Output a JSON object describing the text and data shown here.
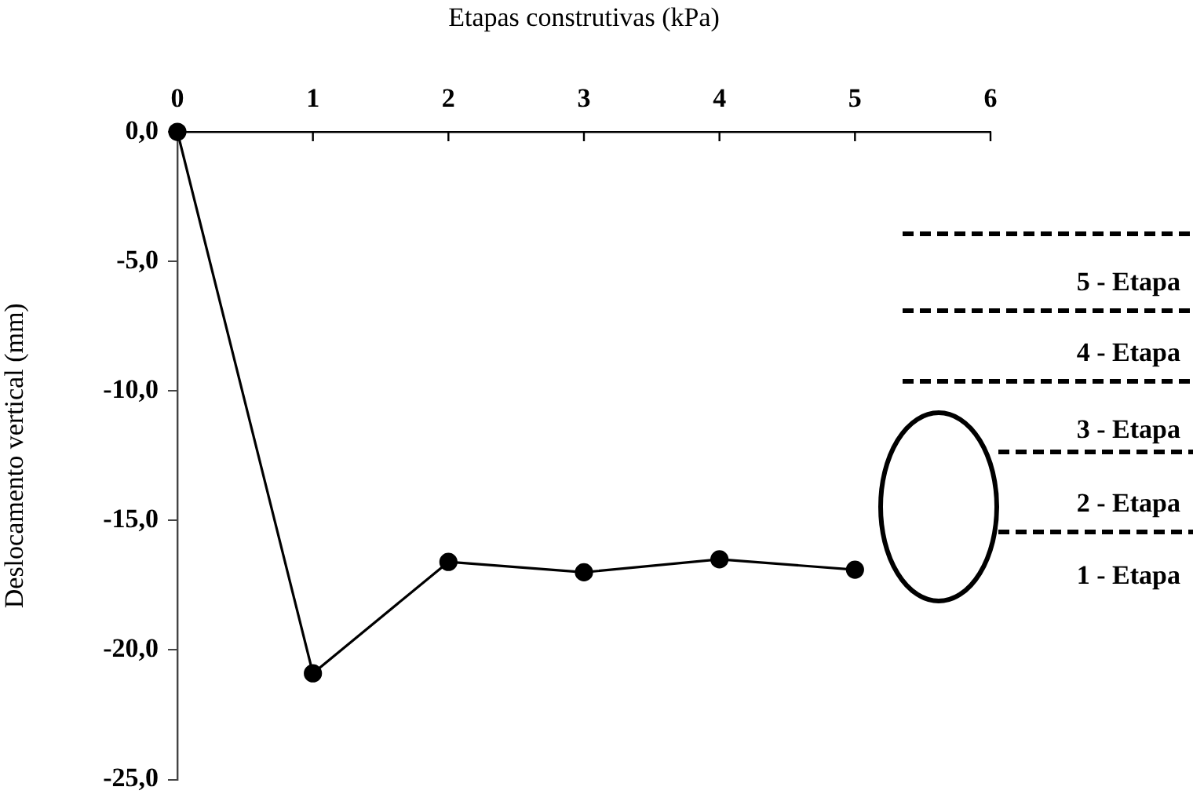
{
  "chart_data": {
    "type": "line",
    "xlabel": "Etapas construtivas (kPa)",
    "ylabel": "Deslocamento vertical (mm)",
    "x": [
      0,
      1,
      2,
      3,
      4,
      5
    ],
    "series": [
      {
        "color": "#000000",
        "values": [
          0,
          -20.9,
          -16.6,
          -17.0,
          -16.5,
          -16.9
        ]
      }
    ],
    "xlim": [
      0,
      6
    ],
    "xticks": [
      0,
      1,
      2,
      3,
      4,
      5,
      6
    ],
    "ylim": [
      -25,
      0
    ],
    "yticks": [
      {
        "value": 0,
        "label": "0,0"
      },
      {
        "value": -5,
        "label": "-5,0"
      },
      {
        "value": -10,
        "label": "-10,0"
      },
      {
        "value": -15,
        "label": "-15,0"
      },
      {
        "value": -20,
        "label": "-20,0"
      },
      {
        "value": -25,
        "label": "-25,0"
      }
    ],
    "grid": false,
    "legend": false,
    "marker": "circle",
    "line_style": "solid",
    "annotations": [
      "5 - Etapa",
      "4 - Etapa",
      "3 - Etapa",
      "2 - Etapa",
      "1 - Etapa"
    ]
  }
}
